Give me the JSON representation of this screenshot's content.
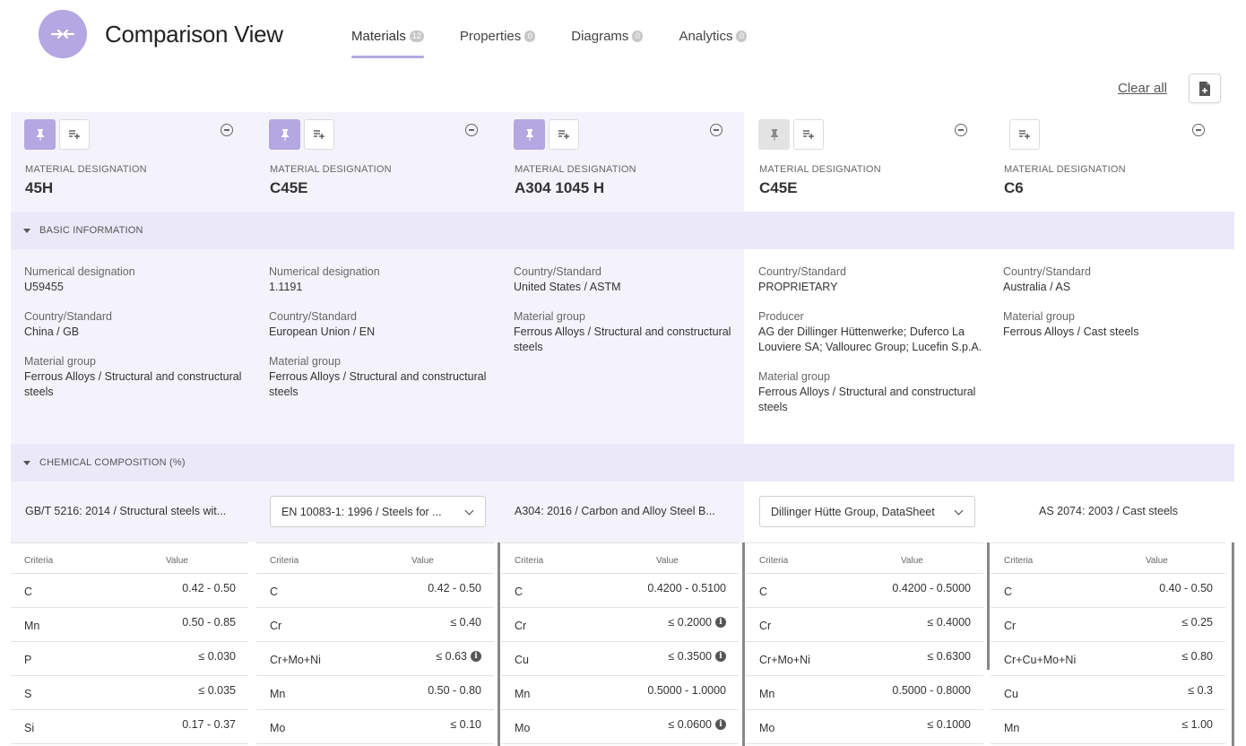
{
  "header": {
    "title": "Comparison View",
    "tabs": [
      {
        "label": "Materials",
        "count": "12",
        "active": true
      },
      {
        "label": "Properties",
        "count": "0"
      },
      {
        "label": "Diagrams",
        "count": "0"
      },
      {
        "label": "Analytics",
        "count": "0"
      }
    ],
    "clear_all": "Clear all"
  },
  "sections": {
    "basic": "BASIC INFORMATION",
    "chem": "CHEMICAL COMPOSITION (%)"
  },
  "labels": {
    "material_designation": "MATERIAL DESIGNATION",
    "criteria": "Criteria",
    "value": "Value"
  },
  "materials": [
    {
      "designation": "45H",
      "pinned": true,
      "info": [
        {
          "label": "Numerical designation",
          "value": "U59455"
        },
        {
          "label": "Country/Standard",
          "value": "China / GB"
        },
        {
          "label": "Material group",
          "value": "Ferrous Alloys / Structural and constructural steels"
        }
      ],
      "standard": "GB/T 5216: 2014 / Structural steels wit...",
      "composition": [
        {
          "criteria": "C",
          "value": "0.42 - 0.50"
        },
        {
          "criteria": "Mn",
          "value": "0.50 - 0.85"
        },
        {
          "criteria": "P",
          "value": "≤ 0.030"
        },
        {
          "criteria": "S",
          "value": "≤ 0.035"
        },
        {
          "criteria": "Si",
          "value": "0.17 - 0.37"
        }
      ]
    },
    {
      "designation": "C45E",
      "pinned": true,
      "info": [
        {
          "label": "Numerical designation",
          "value": "1.1191"
        },
        {
          "label": "Country/Standard",
          "value": "European Union / EN"
        },
        {
          "label": "Material group",
          "value": "Ferrous Alloys / Structural and constructural steels"
        }
      ],
      "standard": "EN 10083-1: 1996 / Steels for ...",
      "composition": [
        {
          "criteria": "C",
          "value": "0.42 - 0.50"
        },
        {
          "criteria": "Cr",
          "value": "≤ 0.40"
        },
        {
          "criteria": "Cr+Mo+Ni",
          "value": "≤ 0.63",
          "info": "i"
        },
        {
          "criteria": "Mn",
          "value": "0.50 - 0.80"
        },
        {
          "criteria": "Mo",
          "value": "≤ 0.10"
        }
      ]
    },
    {
      "designation": "A304 1045 H",
      "pinned": true,
      "info": [
        {
          "label": "Country/Standard",
          "value": "United States / ASTM"
        },
        {
          "label": "Material group",
          "value": "Ferrous Alloys / Structural and constructural steels"
        }
      ],
      "standard": "A304: 2016 / Carbon and Alloy Steel B...",
      "composition": [
        {
          "criteria": "C",
          "value": "0.4200 - 0.5100"
        },
        {
          "criteria": "Cr",
          "value": "≤ 0.2000",
          "info": "i"
        },
        {
          "criteria": "Cu",
          "value": "≤ 0.3500",
          "info": "i"
        },
        {
          "criteria": "Mn",
          "value": "0.5000 - 1.0000"
        },
        {
          "criteria": "Mo",
          "value": "≤ 0.0600",
          "info": "i"
        }
      ]
    },
    {
      "designation": "C45E",
      "pinned": false,
      "info": [
        {
          "label": "Country/Standard",
          "value": "PROPRIETARY"
        },
        {
          "label": "Producer",
          "value": "AG der Dillinger Hüttenwerke; Duferco La Louviere SA; Vallourec Group; Lucefin S.p.A."
        },
        {
          "label": "Material group",
          "value": "Ferrous Alloys / Structural and constructural steels"
        }
      ],
      "standard": "Dillinger Hütte Group, DataSheet",
      "composition": [
        {
          "criteria": "C",
          "value": "0.4200 - 0.5000"
        },
        {
          "criteria": "Cr",
          "value": "≤ 0.4000"
        },
        {
          "criteria": "Cr+Mo+Ni",
          "value": "≤ 0.6300"
        },
        {
          "criteria": "Mn",
          "value": "0.5000 - 0.8000"
        },
        {
          "criteria": "Mo",
          "value": "≤ 0.1000"
        }
      ]
    },
    {
      "designation": "C6",
      "pinned": null,
      "info": [
        {
          "label": "Country/Standard",
          "value": "Australia / AS"
        },
        {
          "label": "Material group",
          "value": "Ferrous Alloys / Cast steels"
        }
      ],
      "standard": "AS 2074: 2003 / Cast steels",
      "composition": [
        {
          "criteria": "C",
          "value": "0.40 - 0.50"
        },
        {
          "criteria": "Cr",
          "value": "≤ 0.25"
        },
        {
          "criteria": "Cr+Cu+Mo+Ni",
          "value": "≤ 0.80"
        },
        {
          "criteria": "Cu",
          "value": "≤ 0.3"
        },
        {
          "criteria": "Mn",
          "value": "≤ 1.00"
        }
      ]
    }
  ]
}
